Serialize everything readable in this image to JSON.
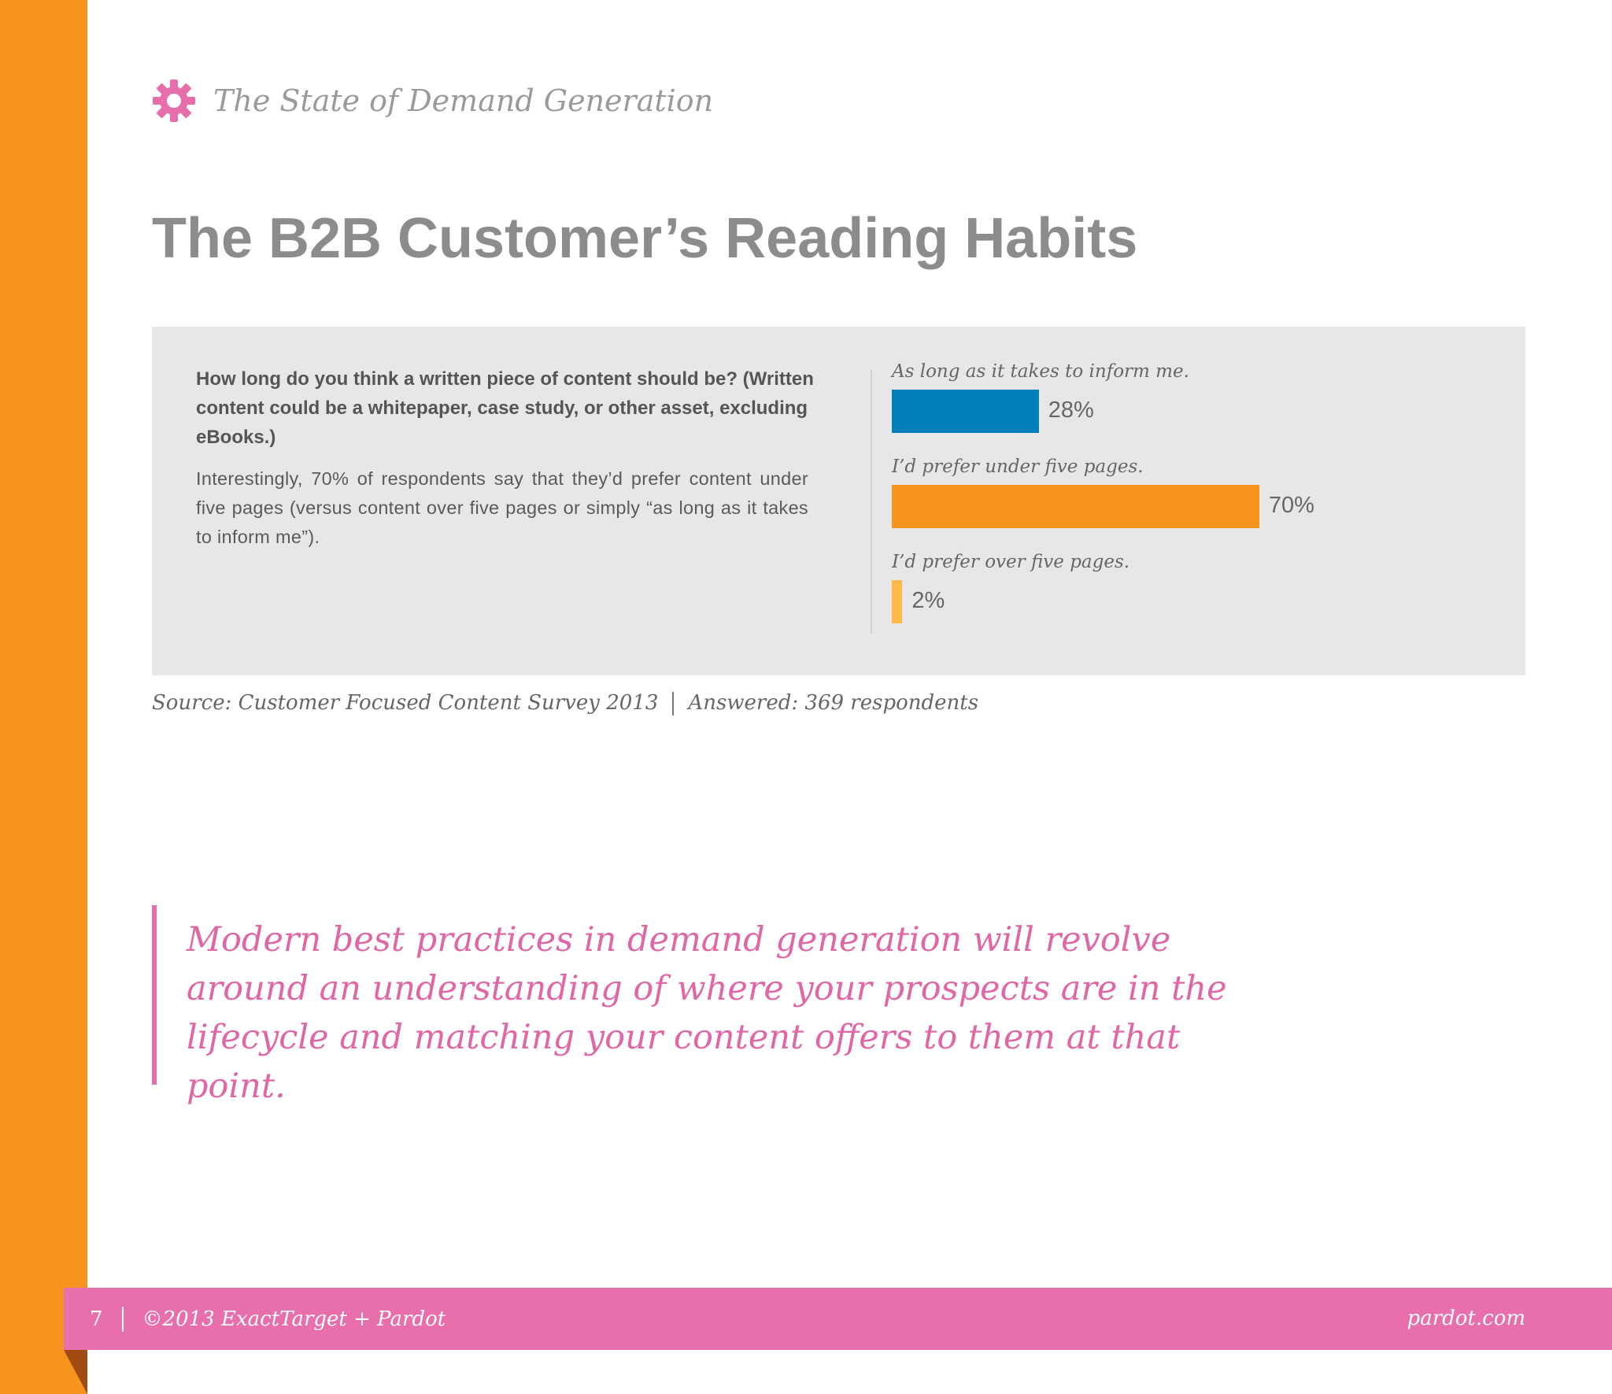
{
  "header": {
    "title": "The State of Demand Generation",
    "icon": "gear-icon",
    "icon_color": "#e66fab"
  },
  "page_title": "The B2B Customer’s Reading Habits",
  "panel": {
    "question": "How long do you think a written piece of content should be? (Written content could be a whitepaper, case study, or other asset, excluding eBooks.)",
    "blurb": "Interestingly, 70% of respondents say that they’d prefer content under five pages (versus content over five pages or simply “as long as it takes to inform me”)."
  },
  "chart_data": {
    "type": "bar",
    "orientation": "horizontal",
    "categories": [
      "As long as it takes to inform me.",
      "I’d prefer under five pages.",
      "I’d prefer over five pages."
    ],
    "values": [
      28,
      70,
      2
    ],
    "value_labels": [
      "28%",
      "70%",
      "2%"
    ],
    "colors": [
      "#0081bc",
      "#f7941d",
      "#fdb94a"
    ],
    "xlim": [
      0,
      100
    ]
  },
  "source": {
    "text": "Source: Customer Focused Content Survey 2013",
    "answered": "Answered: 369 respondents"
  },
  "quote": "Modern best practices in demand generation will revolve around an understanding of where your prospects are in the lifecycle and matching your content offers to them at that point.",
  "footer": {
    "page_number": "7",
    "copyright": "©2013  ExactTarget + Pardot",
    "website": "pardot.com"
  },
  "colors": {
    "accent_orange": "#f7941d",
    "accent_pink": "#e86fab",
    "panel_bg": "#e7e7e9"
  }
}
